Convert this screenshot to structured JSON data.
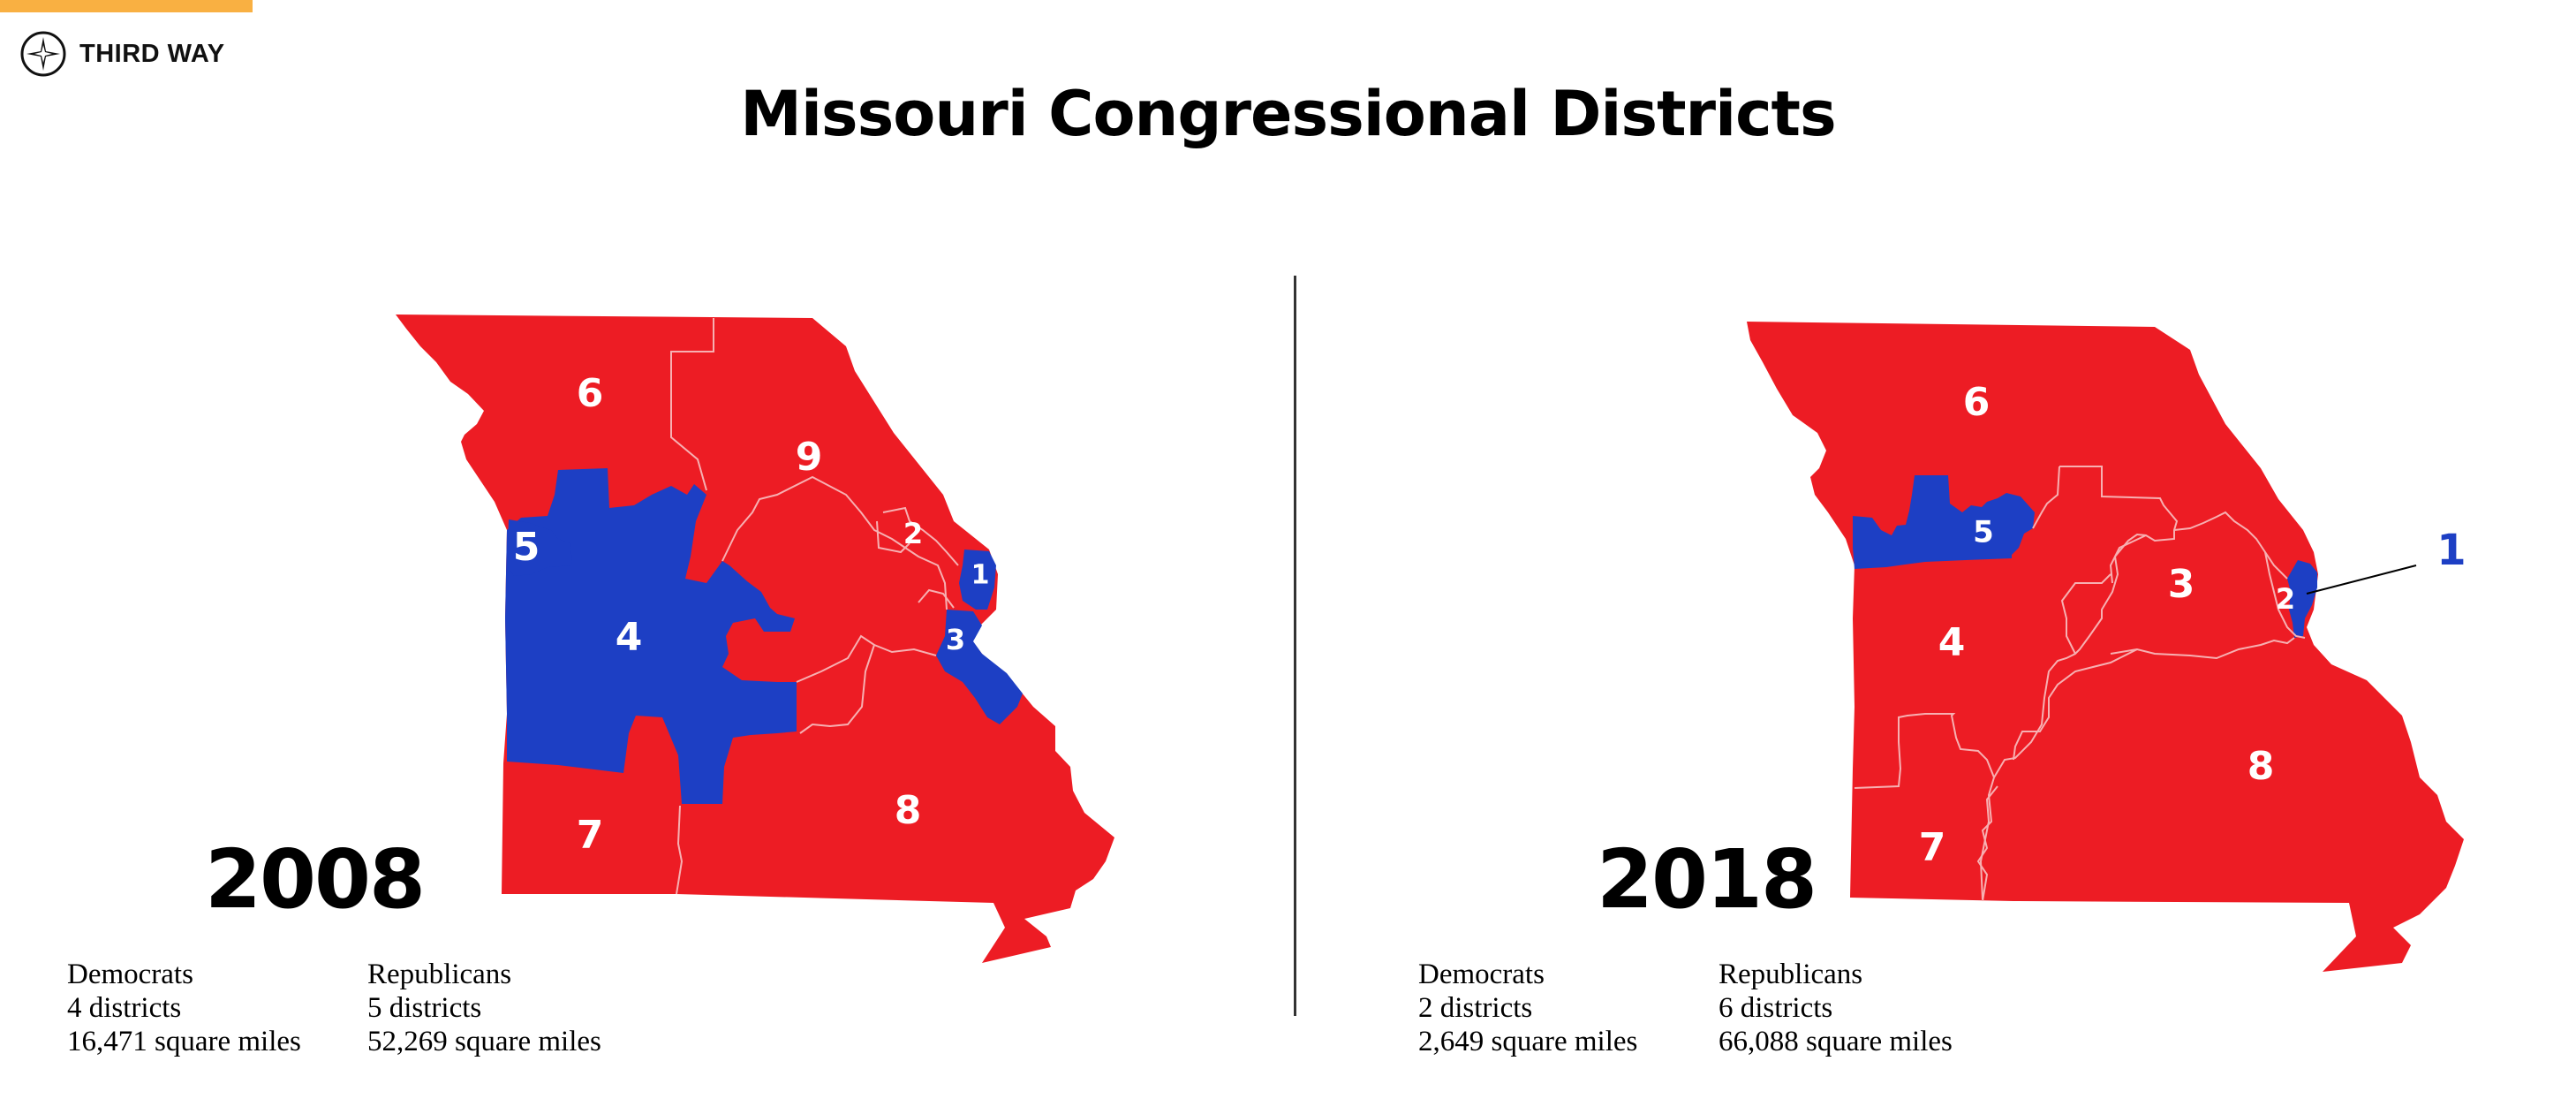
{
  "brand": {
    "name": "THIRD WAY",
    "accent_color": "#f9b042"
  },
  "title": "Missouri Congressional Districts",
  "colors": {
    "republican": "#ed1c24",
    "democrat": "#1d3fc4",
    "border": "#f7b0b2"
  },
  "map_2008": {
    "year": "2008",
    "districts": [
      {
        "label": "6",
        "party": "republican"
      },
      {
        "label": "9",
        "party": "republican"
      },
      {
        "label": "2",
        "party": "republican"
      },
      {
        "label": "1",
        "party": "democrat"
      },
      {
        "label": "5",
        "party": "democrat"
      },
      {
        "label": "4",
        "party": "democrat"
      },
      {
        "label": "3",
        "party": "democrat"
      },
      {
        "label": "7",
        "party": "republican"
      },
      {
        "label": "8",
        "party": "republican"
      }
    ],
    "democrats": {
      "heading": "Democrats",
      "districts": "4 districts",
      "area": "16,471 square miles"
    },
    "republicans": {
      "heading": "Republicans",
      "districts": "5 districts",
      "area": "52,269 square miles"
    }
  },
  "map_2018": {
    "year": "2018",
    "districts": [
      {
        "label": "6",
        "party": "republican"
      },
      {
        "label": "5",
        "party": "democrat"
      },
      {
        "label": "3",
        "party": "republican"
      },
      {
        "label": "2",
        "party": "republican"
      },
      {
        "label": "1",
        "party": "democrat"
      },
      {
        "label": "4",
        "party": "republican"
      },
      {
        "label": "7",
        "party": "republican"
      },
      {
        "label": "8",
        "party": "republican"
      }
    ],
    "democrats": {
      "heading": "Democrats",
      "districts": "2 districts",
      "area": "2,649 square miles"
    },
    "republicans": {
      "heading": "Republicans",
      "districts": "6 districts",
      "area": "66,088 square miles"
    }
  }
}
